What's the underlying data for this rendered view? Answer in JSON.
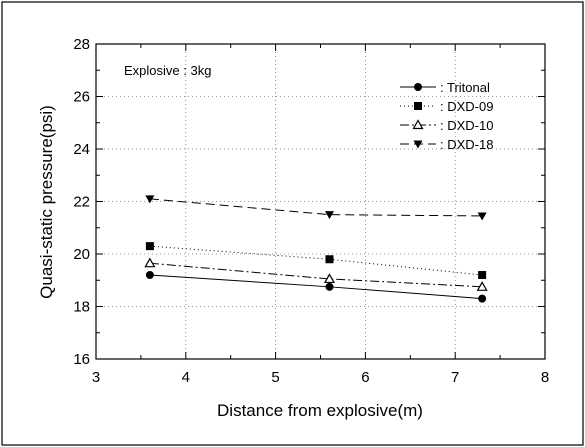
{
  "chart_data": {
    "type": "line",
    "annotation": "Explosive : 3kg",
    "xlabel": "Distance from explosive(m)",
    "ylabel": "Quasi-static pressure(psi)",
    "xlim": [
      3,
      8
    ],
    "ylim": [
      16,
      28
    ],
    "xticks": [
      3,
      4,
      5,
      6,
      7,
      8
    ],
    "yticks": [
      16,
      18,
      20,
      22,
      24,
      26,
      28
    ],
    "grid": true,
    "legend_position": "top-right",
    "x": [
      3.6,
      5.6,
      7.3
    ],
    "series": [
      {
        "name": ": Tritonal",
        "marker": "circle",
        "dash": "solid",
        "values": [
          19.2,
          18.75,
          18.3
        ]
      },
      {
        "name": ": DXD-09",
        "marker": "square",
        "dash": "dotted",
        "values": [
          20.3,
          19.8,
          19.2
        ]
      },
      {
        "name": ": DXD-10",
        "marker": "triangle-up",
        "dash": "dashdot",
        "values": [
          19.65,
          19.05,
          18.75
        ]
      },
      {
        "name": ": DXD-18",
        "marker": "triangle-down",
        "dash": "dashed",
        "values": [
          22.1,
          21.5,
          21.45
        ]
      }
    ]
  }
}
